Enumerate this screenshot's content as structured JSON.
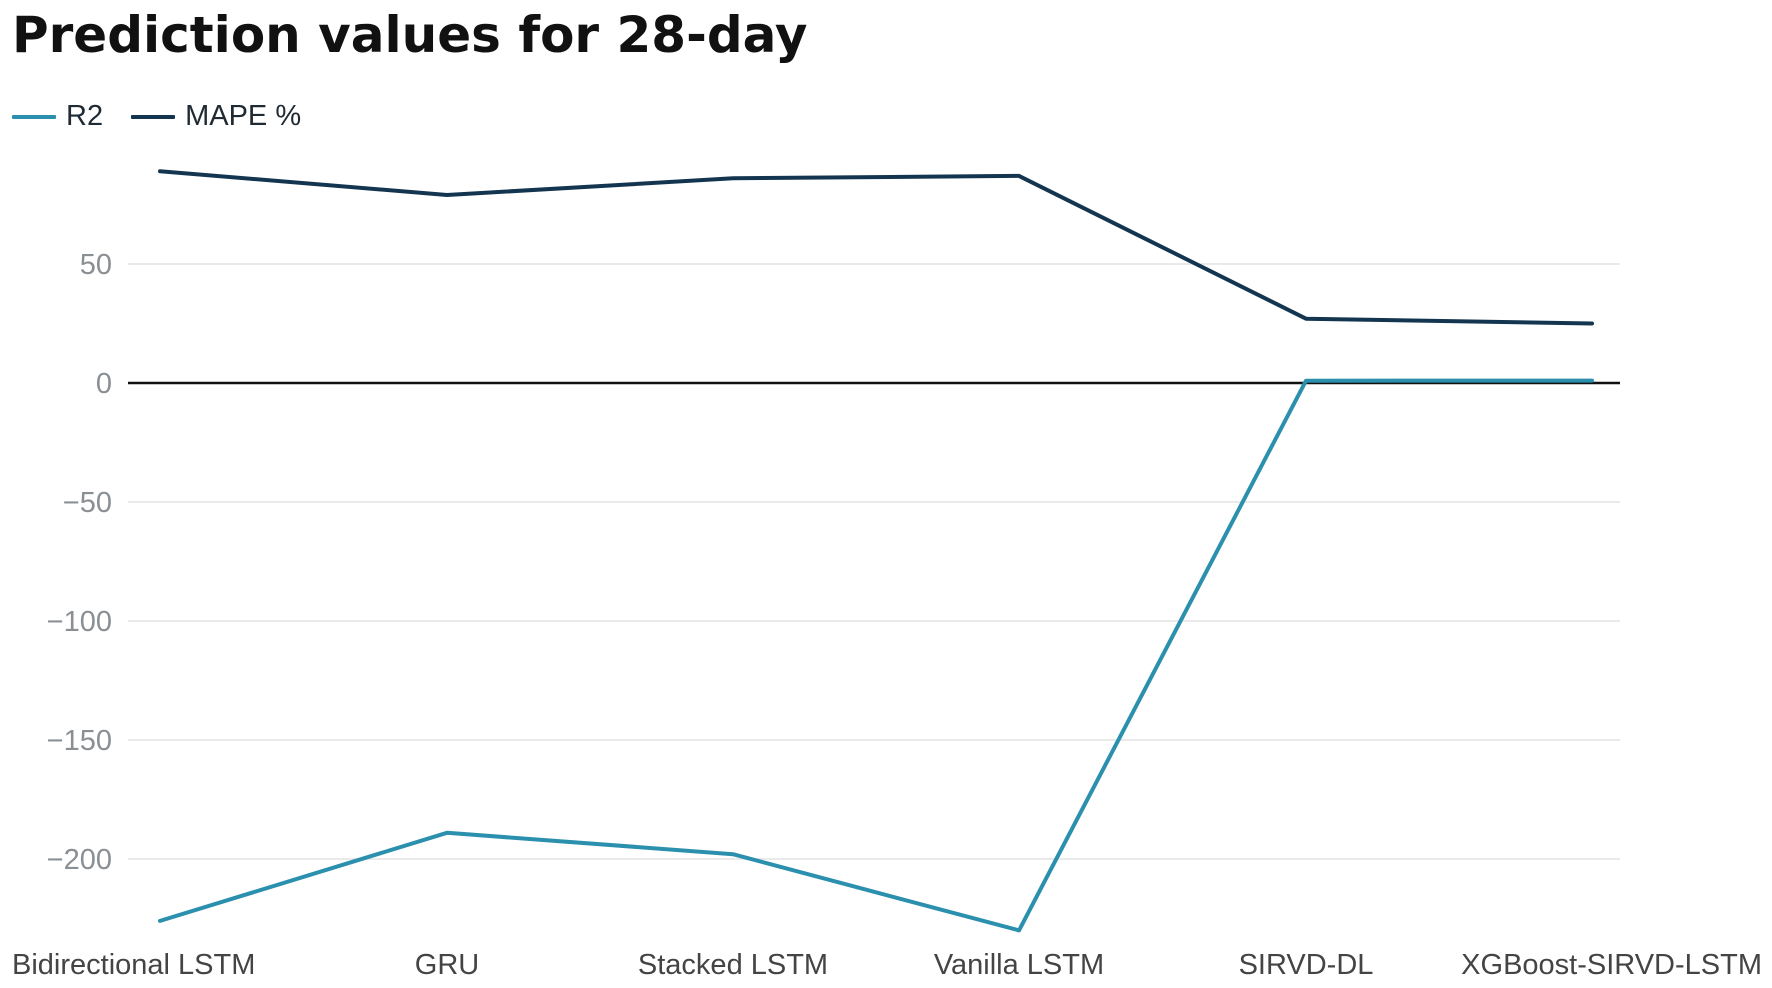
{
  "chart_data": {
    "type": "line",
    "title": "Prediction values for 28-day",
    "xlabel": "",
    "ylabel": "",
    "categories": [
      "Bidirectional LSTM",
      "GRU",
      "Stacked LSTM",
      "Vanilla LSTM",
      "SIRVD-DL",
      "XGBoost-SIRVD-LSTM"
    ],
    "series": [
      {
        "name": "R2",
        "color": "#2b8fae",
        "values": [
          -226,
          -189,
          -198,
          -230,
          0.98,
          0.99
        ]
      },
      {
        "name": "MAPE %",
        "color": "#14354f",
        "values": [
          89,
          79,
          86,
          87,
          27,
          25
        ]
      }
    ],
    "ylim": [
      -230,
      90
    ],
    "yticks": [
      50,
      0,
      -50,
      -100,
      -150,
      -200
    ],
    "ytick_labels": [
      "50",
      "0",
      "−50",
      "−100",
      "−150",
      "−200"
    ],
    "grid": true,
    "legend": "top-left"
  }
}
